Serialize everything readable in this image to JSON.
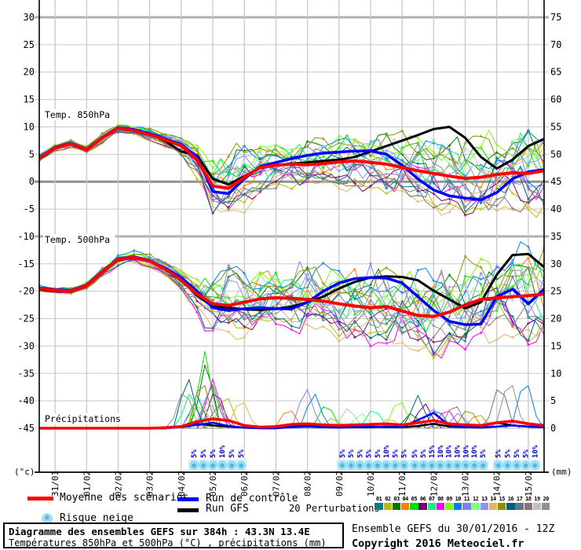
{
  "footer": {
    "title": "Diagramme des ensembles GEFS sur 384h : 43.3N 13.4E",
    "subtitle": "Températures 850hPa et 500hPa (°C) , précipitations (mm)",
    "run_info": "Ensemble GEFS du 30/01/2016 - 12Z",
    "copyright": "Copyright 2016 Meteociel.fr"
  },
  "legend": {
    "mean_label": "Moyenne des scénarios",
    "control_label": "Run de contrôle",
    "gfs_label": "Run GFS",
    "snow_label": "Risque neige",
    "perturbations_label": "20 Perturbations",
    "snowflake_icon": "❄",
    "mean_color": "#ff0000",
    "control_color": "#0000ff",
    "gfs_color": "#000000"
  },
  "chart_data": {
    "type": "line",
    "panel_titles": [
      "Temp. 850hPa",
      "Temp. 500hPa",
      "Précipitations"
    ],
    "unit_left": "(°c)",
    "unit_right": "(mm)",
    "left_ticks": [
      30,
      25,
      20,
      15,
      10,
      5,
      0,
      -5,
      -10,
      -15,
      -20,
      -25,
      -30,
      -35,
      -40,
      -45
    ],
    "right_ticks": [
      75,
      70,
      65,
      60,
      55,
      50,
      45,
      40,
      35,
      30,
      25,
      20,
      15,
      10,
      5,
      0
    ],
    "dates": [
      "31/01",
      "01/02",
      "02/02",
      "03/02",
      "04/02",
      "05/02",
      "06/02",
      "07/02",
      "08/02",
      "09/02",
      "10/02",
      "11/02",
      "12/02",
      "13/02",
      "14/02",
      "15/02"
    ],
    "x_range_days": 16,
    "sample_step_days": 0.5,
    "series": {
      "mean850": [
        4.3,
        6.2,
        6.9,
        5.8,
        8.0,
        9.8,
        9.3,
        8.6,
        7.6,
        6.6,
        4.0,
        -0.8,
        -1.2,
        0.8,
        2.6,
        3.0,
        3.2,
        3.1,
        3.3,
        3.6,
        3.8,
        3.5,
        3.2,
        2.6,
        2.0,
        1.5,
        1.0,
        0.6,
        0.8,
        1.3,
        1.6,
        1.5,
        2.0
      ],
      "ctrl850": [
        4.4,
        6.3,
        7.0,
        5.9,
        8.1,
        9.9,
        9.5,
        8.8,
        7.8,
        6.8,
        4.5,
        -1.8,
        -2.2,
        0.5,
        2.8,
        3.5,
        4.2,
        4.8,
        5.2,
        5.4,
        5.6,
        5.6,
        5.0,
        3.0,
        0.5,
        -1.5,
        -2.6,
        -3.0,
        -3.3,
        -2.0,
        0.5,
        1.8,
        2.2
      ],
      "gfs850": [
        4.2,
        6.1,
        7.0,
        5.7,
        8.0,
        9.7,
        9.4,
        8.7,
        7.4,
        5.5,
        4.8,
        0.5,
        -0.5,
        1.0,
        2.5,
        3.0,
        3.3,
        3.5,
        3.8,
        4.0,
        4.5,
        5.5,
        6.5,
        7.5,
        8.5,
        9.6,
        10.0,
        8.0,
        4.5,
        2.4,
        4.0,
        6.5,
        7.8
      ],
      "mean500": [
        -19.5,
        -19.8,
        -20.0,
        -19.0,
        -16.5,
        -14.2,
        -13.8,
        -14.5,
        -16.0,
        -18.0,
        -20.5,
        -22.3,
        -22.6,
        -22.0,
        -21.4,
        -21.2,
        -21.3,
        -21.5,
        -21.8,
        -22.3,
        -22.7,
        -23.0,
        -22.8,
        -23.6,
        -24.4,
        -24.6,
        -23.8,
        -22.5,
        -21.5,
        -21.2,
        -21.0,
        -20.8,
        -20.5
      ],
      "ctrl500": [
        -19.4,
        -19.7,
        -19.9,
        -18.9,
        -16.4,
        -14.1,
        -13.7,
        -14.4,
        -15.8,
        -17.5,
        -20.0,
        -23.0,
        -23.5,
        -23.2,
        -23.0,
        -23.2,
        -23.2,
        -22.0,
        -20.0,
        -18.5,
        -17.7,
        -17.5,
        -17.6,
        -18.5,
        -21.0,
        -23.5,
        -25.5,
        -26.1,
        -26.0,
        -21.0,
        -19.6,
        -22.3,
        -19.6
      ],
      "gfs500": [
        -19.6,
        -19.9,
        -20.1,
        -19.1,
        -16.6,
        -14.3,
        -13.9,
        -14.4,
        -15.8,
        -17.8,
        -20.8,
        -22.8,
        -23.0,
        -23.3,
        -23.4,
        -23.2,
        -22.8,
        -22.0,
        -21.0,
        -19.5,
        -18.3,
        -17.5,
        -17.3,
        -17.4,
        -18.0,
        -19.9,
        -21.5,
        -23.1,
        -22.0,
        -17.0,
        -13.4,
        -13.2,
        -15.6
      ],
      "meanPrec": [
        0,
        0,
        0,
        0,
        0,
        0,
        0,
        0,
        0.1,
        0.3,
        1.2,
        1.7,
        1.4,
        0.5,
        0.2,
        0.3,
        0.7,
        0.8,
        0.6,
        0.5,
        0.6,
        0.7,
        0.8,
        0.6,
        1.0,
        1.4,
        0.8,
        0.6,
        0.5,
        1.0,
        1.3,
        0.8,
        0.5
      ],
      "ctrlPrec": [
        0,
        0,
        0,
        0,
        0,
        0,
        0,
        0,
        0,
        0.2,
        0.6,
        1.0,
        0.4,
        0.1,
        0,
        0,
        0.2,
        0.3,
        0.2,
        0.1,
        0.2,
        0.3,
        0.2,
        0.2,
        1.5,
        2.8,
        0.5,
        0.2,
        0.1,
        0.3,
        0.5,
        0.3,
        0.2
      ],
      "gfsPrec": [
        0,
        0,
        0,
        0,
        0,
        0,
        0,
        0,
        0,
        0.3,
        0.8,
        0.5,
        0.3,
        0.1,
        0,
        0,
        0.3,
        0.5,
        0.3,
        0.2,
        0.2,
        0.2,
        0.3,
        0.2,
        0.4,
        0.8,
        0.3,
        0.2,
        0.3,
        1.0,
        0.5,
        0.3,
        0.2
      ]
    },
    "spread850": [
      0.5,
      0.5,
      0.5,
      0.5,
      0.6,
      0.6,
      0.7,
      0.8,
      0.9,
      1.2,
      2.2,
      3.8,
      4.8,
      4.2,
      3.2,
      3.0,
      3.0,
      3.0,
      3.2,
      3.4,
      3.6,
      3.8,
      4.0,
      4.2,
      4.5,
      4.7,
      4.9,
      5.0,
      5.2,
      5.3,
      5.4,
      5.5,
      5.5
    ],
    "spread500": [
      0.4,
      0.4,
      0.5,
      0.5,
      0.6,
      0.7,
      0.8,
      0.9,
      1.1,
      1.6,
      2.6,
      4.2,
      5.0,
      4.5,
      4.0,
      4.0,
      4.2,
      4.4,
      4.6,
      4.8,
      5.0,
      5.2,
      5.4,
      5.5,
      5.6,
      5.8,
      6.0,
      6.0,
      6.1,
      6.2,
      6.2,
      6.4,
      6.5
    ],
    "members": [
      {
        "id": "01",
        "color": "#008080",
        "b8": -0.55,
        "b5": -0.35,
        "a": 0.55,
        "w": 2.6,
        "ph": 0.0,
        "rain": [
          [
            5.0,
            6
          ],
          [
            12.6,
            4
          ]
        ]
      },
      {
        "id": "02",
        "color": "#bcbc00",
        "b8": -0.95,
        "b5": -0.75,
        "a": 0.45,
        "w": 2.2,
        "ph": 0.7,
        "rain": [
          [
            5.9,
            7
          ],
          [
            9.3,
            2
          ]
        ]
      },
      {
        "id": "03",
        "color": "#007800",
        "b8": 0.75,
        "b5": 0.55,
        "a": 0.5,
        "w": 2.9,
        "ph": 1.4,
        "rain": [
          [
            5.3,
            13
          ],
          [
            11.8,
            3
          ]
        ]
      },
      {
        "id": "04",
        "color": "#ff8000",
        "b8": 0.15,
        "b5": 0.35,
        "a": 0.65,
        "w": 2.4,
        "ph": 2.1,
        "rain": [
          [
            7.9,
            4
          ],
          [
            13.9,
            3
          ]
        ]
      },
      {
        "id": "05",
        "color": "#00e000",
        "b8": 0.45,
        "b5": 0.25,
        "a": 0.6,
        "w": 3.1,
        "ph": 2.8,
        "rain": [
          [
            5.25,
            14
          ],
          [
            9.1,
            5
          ]
        ]
      },
      {
        "id": "06",
        "color": "#780078",
        "b8": -0.75,
        "b5": -0.55,
        "a": 0.5,
        "w": 2.0,
        "ph": 3.5,
        "rain": [
          [
            5.6,
            8
          ],
          [
            12.2,
            5
          ]
        ]
      },
      {
        "id": "07",
        "color": "#00ff80",
        "b8": 0.3,
        "b5": 0.1,
        "a": 0.7,
        "w": 2.7,
        "ph": 4.2,
        "rain": [
          [
            4.8,
            7
          ],
          [
            10.6,
            4
          ]
        ]
      },
      {
        "id": "08",
        "color": "#ff00ff",
        "b8": -0.4,
        "b5": -0.85,
        "a": 0.6,
        "w": 2.3,
        "ph": 4.9,
        "rain": [
          [
            5.5,
            9
          ],
          [
            12.9,
            4
          ]
        ]
      },
      {
        "id": "09",
        "color": "#80ff00",
        "b8": 0.85,
        "b5": 0.65,
        "a": 0.45,
        "w": 2.8,
        "ph": 5.6,
        "rain": [
          [
            5.1,
            5
          ],
          [
            11.4,
            6
          ]
        ]
      },
      {
        "id": "10",
        "color": "#0080ff",
        "b8": 0.6,
        "b5": 0.8,
        "a": 0.55,
        "w": 2.1,
        "ph": 0.35,
        "rain": [
          [
            8.7,
            7
          ],
          [
            15.4,
            10
          ]
        ]
      },
      {
        "id": "11",
        "color": "#8080ff",
        "b8": 0.2,
        "b5": 0.4,
        "a": 0.75,
        "w": 3.0,
        "ph": 1.05,
        "rain": [
          [
            8.45,
            8
          ],
          [
            13.3,
            3
          ]
        ]
      },
      {
        "id": "12",
        "color": "#80ff80",
        "b8": 0.5,
        "b5": 0.3,
        "a": 0.5,
        "w": 2.5,
        "ph": 1.75,
        "rain": [
          [
            4.95,
            4
          ],
          [
            10.2,
            3
          ]
        ]
      },
      {
        "id": "13",
        "color": "#9090ff",
        "b8": -0.15,
        "b5": 0.15,
        "a": 0.6,
        "w": 2.75,
        "ph": 2.45,
        "rain": [
          [
            5.35,
            6
          ],
          [
            12.45,
            4
          ]
        ]
      },
      {
        "id": "14",
        "color": "#e0b860",
        "b8": -1.05,
        "b5": -0.95,
        "a": 0.4,
        "w": 2.15,
        "ph": 3.15,
        "rain": [
          [
            6.4,
            6
          ],
          [
            11.1,
            2
          ]
        ]
      },
      {
        "id": "15",
        "color": "#8a9400",
        "b8": 0.95,
        "b5": 0.75,
        "a": 0.5,
        "w": 2.55,
        "ph": 3.85,
        "rain": [
          [
            5.15,
            10
          ],
          [
            13.6,
            4
          ]
        ]
      },
      {
        "id": "16",
        "color": "#00607c",
        "b8": -0.3,
        "b5": -0.6,
        "a": 0.65,
        "w": 2.35,
        "ph": 4.55,
        "rain": [
          [
            4.7,
            10
          ],
          [
            12.0,
            6
          ]
        ]
      },
      {
        "id": "17",
        "color": "#5a7a8a",
        "b8": -0.65,
        "b5": -0.25,
        "a": 0.55,
        "w": 2.65,
        "ph": 5.25,
        "rain": [
          [
            5.45,
            9
          ],
          [
            14.6,
            9
          ]
        ]
      },
      {
        "id": "18",
        "color": "#8a7474",
        "b8": -0.85,
        "b5": -0.45,
        "a": 0.45,
        "w": 2.45,
        "ph": 5.95,
        "rain": [
          [
            5.7,
            5
          ],
          [
            13.15,
            5
          ]
        ]
      },
      {
        "id": "19",
        "color": "#c0c0c0",
        "b8": 0.35,
        "b5": -0.05,
        "a": 0.55,
        "w": 2.85,
        "ph": 0.9,
        "rain": [
          [
            5.05,
            7
          ],
          [
            9.8,
            4
          ]
        ]
      },
      {
        "id": "20",
        "color": "#909090",
        "b8": 0.05,
        "b5": -0.15,
        "a": 0.7,
        "w": 2.05,
        "ph": 1.6,
        "rain": [
          [
            4.6,
            8
          ],
          [
            14.9,
            10
          ]
        ]
      }
    ],
    "snow_groups": [
      {
        "start": 4.9,
        "step": 0.3,
        "percents": [
          "5%",
          "5%",
          "5%",
          "10%",
          "5%",
          "5%"
        ]
      },
      {
        "start": 9.6,
        "step": 0.28,
        "percents": [
          "5%",
          "5%",
          "5%",
          "5%",
          "5%",
          "10%",
          "5%",
          "5%"
        ]
      },
      {
        "start": 11.9,
        "step": 0.27,
        "percents": [
          "5%",
          "5%",
          "15%",
          "10%",
          "10%",
          "10%",
          "10%",
          "10%",
          "5%"
        ]
      },
      {
        "start": 14.55,
        "step": 0.29,
        "percents": [
          "5%",
          "5%",
          "5%",
          "5%",
          "10%"
        ]
      }
    ],
    "snow_colors": {
      "band": "#d6f2fb",
      "flake_bg": "#9adcf2",
      "flake": "#1899cc",
      "pct_text": "#0000cc"
    },
    "grid": {
      "normal": "#c8c8c8",
      "emph": "#b0b0b0",
      "zero": "#909090",
      "emph_values": [
        30,
        -10
      ],
      "zero_value": 0
    }
  }
}
